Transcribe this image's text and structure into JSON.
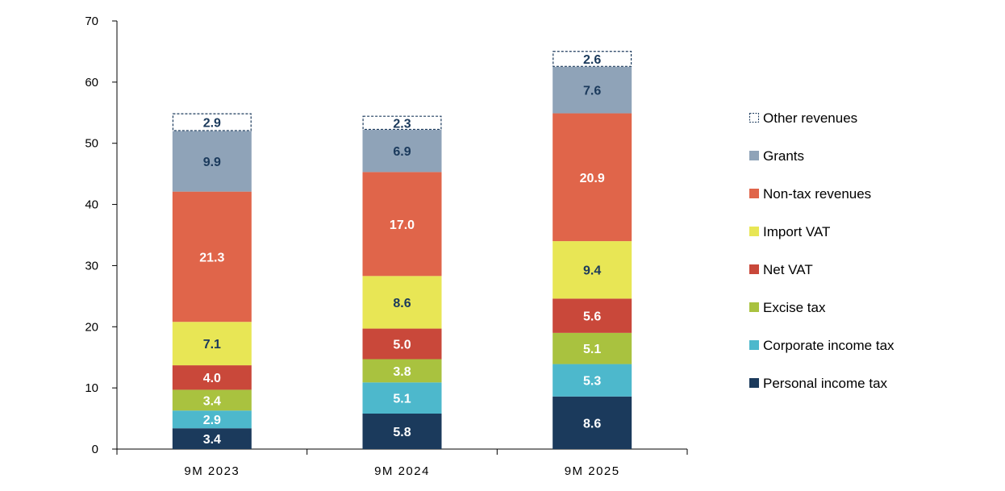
{
  "chart_data": {
    "type": "bar",
    "stacked": true,
    "title": "",
    "xlabel": "",
    "ylabel": "",
    "ylim": [
      0,
      70
    ],
    "yticks": [
      0,
      10,
      20,
      30,
      40,
      50,
      60,
      70
    ],
    "grid": false,
    "legend_position": "right",
    "categories": [
      "9M 2023",
      "9M 2024",
      "9M 2025"
    ],
    "series": [
      {
        "name": "Personal income tax",
        "values": [
          3.4,
          5.8,
          8.6
        ],
        "color": "#1b3a5c",
        "label_color": "#ffffff",
        "style": "solid"
      },
      {
        "name": "Corporate income tax",
        "values": [
          2.9,
          5.1,
          5.3
        ],
        "color": "#4db8cc",
        "label_color": "#ffffff",
        "style": "solid"
      },
      {
        "name": "Excise tax",
        "values": [
          3.4,
          3.8,
          5.1
        ],
        "color": "#a9c23f",
        "label_color": "#ffffff",
        "style": "solid"
      },
      {
        "name": "Net VAT",
        "values": [
          4.0,
          5.0,
          5.6
        ],
        "color": "#c9483a",
        "label_color": "#ffffff",
        "style": "solid"
      },
      {
        "name": "Import VAT",
        "values": [
          7.1,
          8.6,
          9.4
        ],
        "color": "#e8e655",
        "label_color": "#1b3a5c",
        "style": "solid"
      },
      {
        "name": "Non-tax revenues",
        "values": [
          21.3,
          17.0,
          20.9
        ],
        "color": "#e0654a",
        "label_color": "#ffffff",
        "style": "solid"
      },
      {
        "name": "Grants",
        "values": [
          9.9,
          6.9,
          7.6
        ],
        "color": "#8fa3b8",
        "label_color": "#1b3a5c",
        "style": "solid"
      },
      {
        "name": "Other revenues",
        "values": [
          2.9,
          2.3,
          2.6
        ],
        "color": "#ffffff",
        "border_color": "#1b3a5c",
        "label_color": "#1b3a5c",
        "style": "dashed"
      }
    ]
  }
}
